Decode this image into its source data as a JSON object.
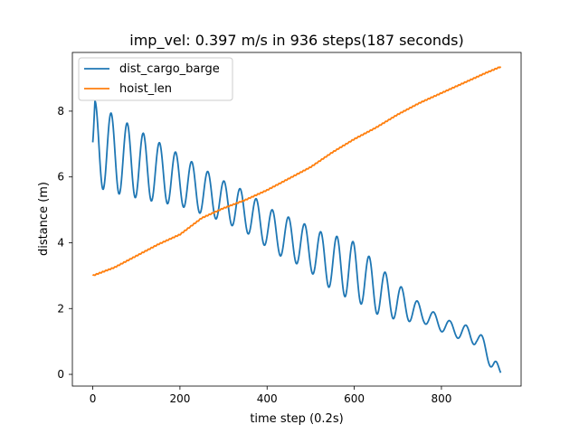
{
  "chart_data": {
    "type": "line",
    "title": "imp_vel: 0.397 m/s in 936 steps(187 seconds)",
    "xlabel": "time step (0.2s)",
    "ylabel": "distance (m)",
    "xlim": [
      -46.8,
      982.8
    ],
    "ylim": [
      -0.356,
      9.784
    ],
    "xticks": [
      0,
      200,
      400,
      600,
      800
    ],
    "yticks": [
      0,
      2,
      4,
      6,
      8
    ],
    "xtick_labels": [
      "0",
      "200",
      "400",
      "600",
      "800"
    ],
    "ytick_labels": [
      "0",
      "2",
      "4",
      "6",
      "8"
    ],
    "grid": false,
    "legend_position": "upper left",
    "x_max": 936,
    "series": [
      {
        "name": "dist_cargo_barge",
        "color": "#1f77b4",
        "model": "oscillation",
        "centre": [
          [
            0,
            7.05
          ],
          [
            40,
            6.75
          ],
          [
            120,
            6.3
          ],
          [
            200,
            5.9
          ],
          [
            270,
            5.45
          ],
          [
            350,
            4.95
          ],
          [
            420,
            4.3
          ],
          [
            480,
            3.95
          ],
          [
            540,
            3.45
          ],
          [
            600,
            3.15
          ],
          [
            650,
            2.6
          ],
          [
            700,
            2.2
          ],
          [
            760,
            1.8
          ],
          [
            820,
            1.4
          ],
          [
            880,
            1.15
          ],
          [
            936,
            0.05
          ]
        ],
        "amplitude": [
          [
            0,
            0.0
          ],
          [
            5,
            1.3
          ],
          [
            100,
            1.05
          ],
          [
            200,
            0.78
          ],
          [
            300,
            0.62
          ],
          [
            400,
            0.62
          ],
          [
            500,
            0.68
          ],
          [
            580,
            0.9
          ],
          [
            640,
            0.8
          ],
          [
            700,
            0.55
          ],
          [
            760,
            0.25
          ],
          [
            830,
            0.22
          ],
          [
            890,
            0.28
          ],
          [
            920,
            0.28
          ],
          [
            936,
            0.0
          ]
        ],
        "period": 37,
        "phase_offset": 5
      },
      {
        "name": "hoist_len",
        "color": "#ff7f0e",
        "model": "piecewise",
        "points": [
          [
            0,
            3.0
          ],
          [
            50,
            3.25
          ],
          [
            100,
            3.6
          ],
          [
            150,
            3.95
          ],
          [
            200,
            4.25
          ],
          [
            250,
            4.75
          ],
          [
            300,
            5.05
          ],
          [
            350,
            5.3
          ],
          [
            400,
            5.6
          ],
          [
            450,
            5.95
          ],
          [
            500,
            6.3
          ],
          [
            550,
            6.75
          ],
          [
            600,
            7.15
          ],
          [
            650,
            7.5
          ],
          [
            700,
            7.9
          ],
          [
            750,
            8.25
          ],
          [
            800,
            8.55
          ],
          [
            850,
            8.85
          ],
          [
            900,
            9.15
          ],
          [
            936,
            9.35
          ]
        ]
      }
    ]
  }
}
